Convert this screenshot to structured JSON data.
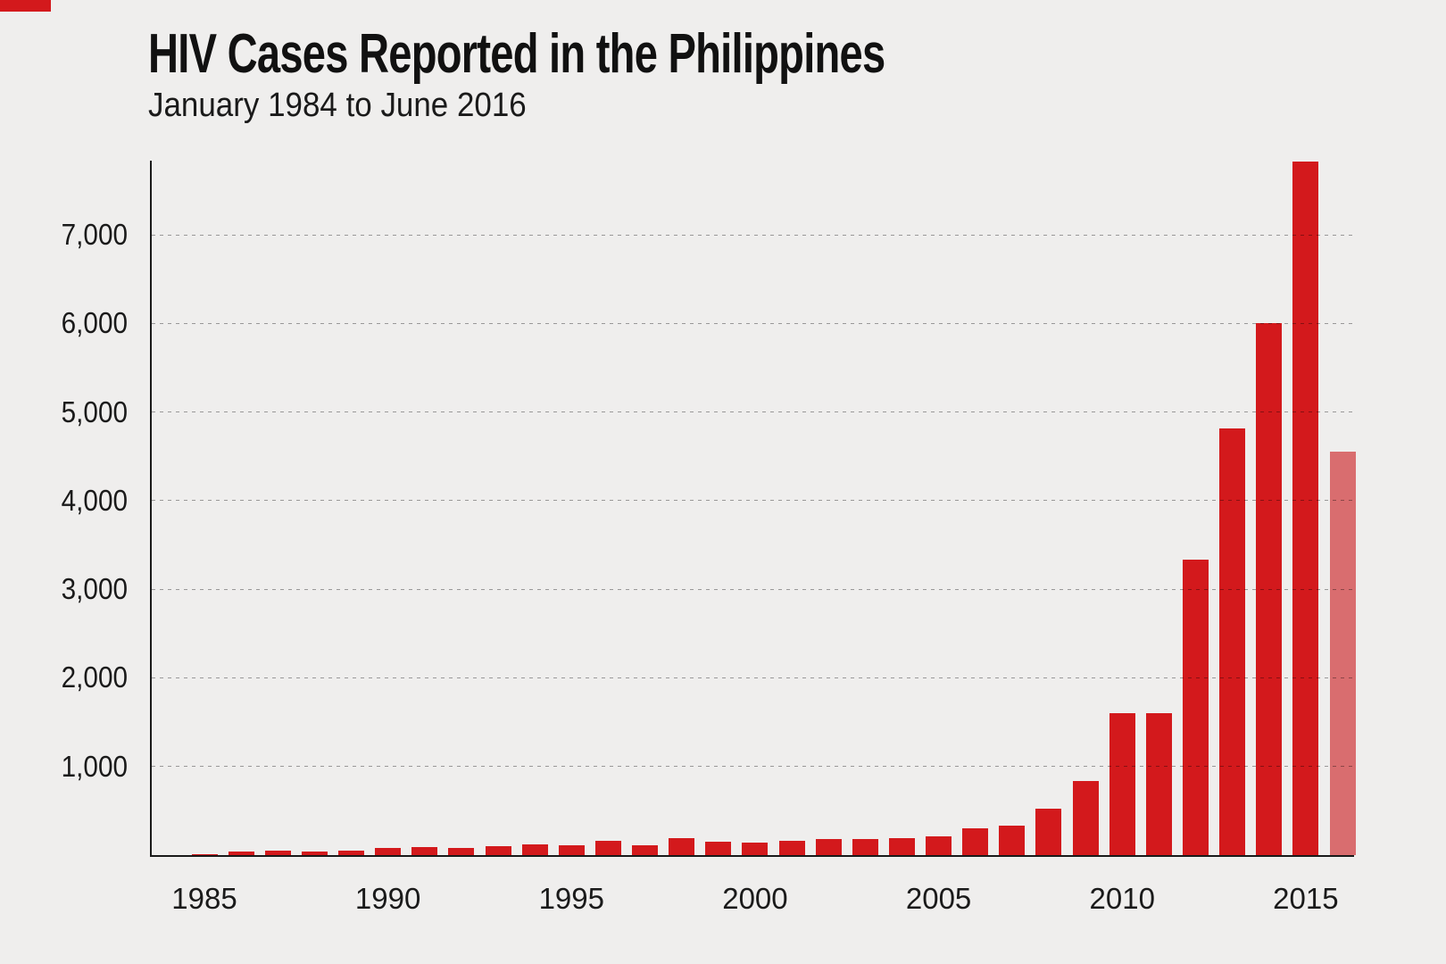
{
  "page": {
    "background": "#efeeed"
  },
  "banner_fragment": {
    "color": "#d3191c"
  },
  "chart_data": {
    "type": "bar",
    "title": "HIV Cases Reported in the Philippines",
    "subtitle": "January 1984 to June 2016",
    "x_years": [
      1984,
      1985,
      1986,
      1987,
      1988,
      1989,
      1990,
      1991,
      1992,
      1993,
      1994,
      1995,
      1996,
      1997,
      1998,
      1999,
      2000,
      2001,
      2002,
      2003,
      2004,
      2005,
      2006,
      2007,
      2008,
      2009,
      2010,
      2011,
      2012,
      2013,
      2014,
      2015,
      2016
    ],
    "values": [
      2,
      12,
      40,
      55,
      40,
      50,
      80,
      92,
      80,
      105,
      120,
      112,
      160,
      115,
      190,
      155,
      145,
      160,
      178,
      185,
      195,
      208,
      300,
      335,
      525,
      835,
      1600,
      1600,
      3330,
      4810,
      6000,
      7830,
      4550
    ],
    "bar_color": "#d3191c",
    "partial_bar": {
      "year": 2016,
      "color": "#d96d6f"
    },
    "ylim": [
      0,
      7830
    ],
    "yticks": [
      {
        "value": 1000,
        "label": "1,000"
      },
      {
        "value": 2000,
        "label": "2,000"
      },
      {
        "value": 3000,
        "label": "3,000"
      },
      {
        "value": 4000,
        "label": "4,000"
      },
      {
        "value": 5000,
        "label": "5,000"
      },
      {
        "value": 6000,
        "label": "6,000"
      },
      {
        "value": 7000,
        "label": "7,000"
      }
    ],
    "xticks": [
      {
        "value": 1985,
        "label": "1985"
      },
      {
        "value": 1990,
        "label": "1990"
      },
      {
        "value": 1995,
        "label": "1995"
      },
      {
        "value": 2000,
        "label": "2000"
      },
      {
        "value": 2005,
        "label": "2005"
      },
      {
        "value": 2010,
        "label": "2010"
      },
      {
        "value": 2015,
        "label": "2015"
      }
    ],
    "grid": {
      "orientation": "horizontal",
      "style": "dashed",
      "color": "#999999"
    },
    "legend": "none",
    "axis_color": "#1a1a1a",
    "text_color": "#1a1a1a"
  }
}
